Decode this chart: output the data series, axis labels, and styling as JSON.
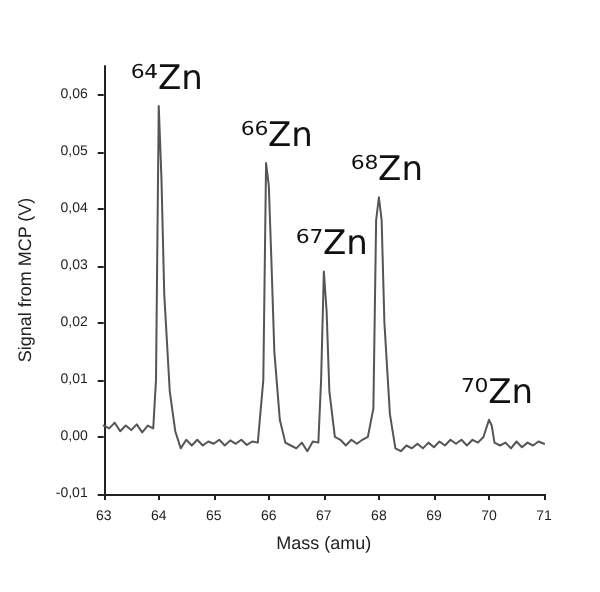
{
  "chart_data": {
    "type": "line",
    "xlabel": "Mass (amu)",
    "ylabel": "Signal from MCP (V)",
    "xlim": [
      63,
      71
    ],
    "xticks": [
      63,
      64,
      65,
      66,
      67,
      68,
      69,
      70,
      71
    ],
    "ylim": [
      -0.01,
      0.065
    ],
    "yticks": [
      {
        "value": -0.01,
        "label": "-0,01"
      },
      {
        "value": 0,
        "label": "0,00"
      },
      {
        "value": 0.01,
        "label": "0,01"
      },
      {
        "value": 0.02,
        "label": "0,02"
      },
      {
        "value": 0.03,
        "label": "0,03"
      },
      {
        "value": 0.04,
        "label": "0,04"
      },
      {
        "value": 0.05,
        "label": "0,05"
      },
      {
        "value": 0.06,
        "label": "0,06"
      }
    ],
    "marker": "none",
    "line_style": "solid",
    "series": [
      {
        "color": "#555555",
        "x": [
          63.0,
          63.1,
          63.2,
          63.3,
          63.4,
          63.5,
          63.6,
          63.7,
          63.8,
          63.9,
          63.95,
          64.0,
          64.05,
          64.1,
          64.2,
          64.3,
          64.4,
          64.5,
          64.6,
          64.7,
          64.8,
          64.9,
          65.0,
          65.1,
          65.2,
          65.3,
          65.4,
          65.5,
          65.6,
          65.7,
          65.8,
          65.9,
          65.95,
          66.0,
          66.05,
          66.1,
          66.2,
          66.3,
          66.4,
          66.5,
          66.6,
          66.7,
          66.8,
          66.9,
          66.95,
          67.0,
          67.05,
          67.1,
          67.2,
          67.3,
          67.4,
          67.5,
          67.6,
          67.7,
          67.8,
          67.9,
          67.95,
          68.0,
          68.05,
          68.1,
          68.2,
          68.3,
          68.4,
          68.5,
          68.6,
          68.7,
          68.8,
          68.9,
          69.0,
          69.1,
          69.2,
          69.3,
          69.4,
          69.5,
          69.6,
          69.7,
          69.8,
          69.9,
          70.0,
          70.05,
          70.1,
          70.2,
          70.3,
          70.4,
          70.5,
          70.6,
          70.7,
          70.8,
          70.9,
          71.0
        ],
        "values": [
          0.002,
          0.0015,
          0.0025,
          0.001,
          0.002,
          0.0012,
          0.0022,
          0.0008,
          0.002,
          0.0015,
          0.01,
          0.058,
          0.045,
          0.025,
          0.008,
          0.001,
          -0.002,
          -0.0005,
          -0.0015,
          -0.0005,
          -0.0015,
          -0.0008,
          -0.0012,
          -0.0005,
          -0.0015,
          -0.0006,
          -0.0012,
          -0.0005,
          -0.0014,
          -0.0008,
          -0.001,
          0.01,
          0.048,
          0.044,
          0.03,
          0.015,
          0.003,
          -0.001,
          -0.0015,
          -0.002,
          -0.001,
          -0.0025,
          -0.0008,
          -0.001,
          0.01,
          0.029,
          0.022,
          0.008,
          0.0,
          -0.0005,
          -0.0015,
          -0.0005,
          -0.0012,
          -0.0005,
          0.0,
          0.005,
          0.038,
          0.042,
          0.038,
          0.02,
          0.004,
          -0.002,
          -0.0025,
          -0.0015,
          -0.002,
          -0.0012,
          -0.002,
          -0.001,
          -0.0018,
          -0.0008,
          -0.0015,
          -0.0005,
          -0.0012,
          -0.0005,
          -0.0015,
          -0.0005,
          -0.001,
          0.0,
          0.003,
          0.002,
          -0.001,
          -0.0015,
          -0.001,
          -0.002,
          -0.0008,
          -0.0018,
          -0.001,
          -0.0015,
          -0.0008,
          -0.0012
        ]
      }
    ],
    "annotations": [
      {
        "text": "⁶⁴Zn",
        "x": 64.0,
        "y": 0.058
      },
      {
        "text": "⁶⁶Zn",
        "x": 66.0,
        "y": 0.048
      },
      {
        "text": "⁶⁷Zn",
        "x": 67.0,
        "y": 0.029
      },
      {
        "text": "⁶⁸Zn",
        "x": 68.0,
        "y": 0.042
      },
      {
        "text": "⁷⁰Zn",
        "x": 70.0,
        "y": 0.003
      }
    ]
  }
}
